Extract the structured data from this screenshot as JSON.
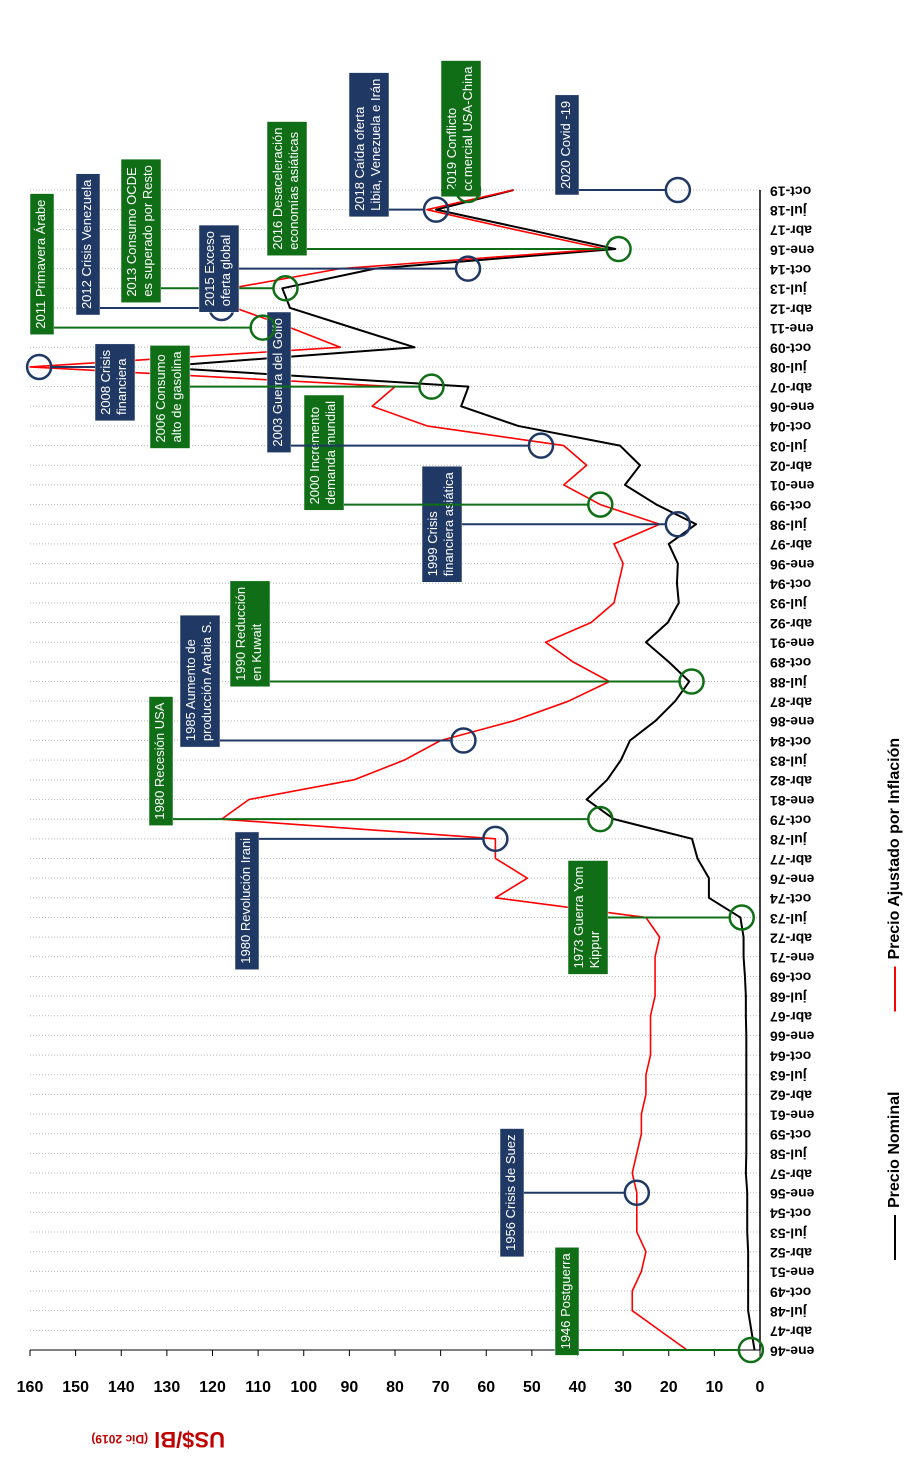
{
  "chart_data": {
    "type": "line",
    "y_label": "US$/Bl",
    "y_label_note": "(Dic 2019)",
    "categories": [
      "ene-46",
      "abr-47",
      "jul-48",
      "oct-49",
      "ene-51",
      "abr-52",
      "jul-53",
      "oct-54",
      "ene-56",
      "abr-57",
      "jul-58",
      "oct-59",
      "ene-61",
      "abr-62",
      "jul-63",
      "oct-64",
      "ene-66",
      "abr-67",
      "jul-68",
      "oct-69",
      "ene-71",
      "abr-72",
      "jul-73",
      "oct-74",
      "ene-76",
      "abr-77",
      "jul-78",
      "oct-79",
      "ene-81",
      "abr-82",
      "jul-83",
      "oct-84",
      "ene-86",
      "abr-87",
      "jul-88",
      "oct-89",
      "ene-91",
      "abr-92",
      "jul-93",
      "oct-94",
      "ene-96",
      "abr-97",
      "jul-98",
      "oct-99",
      "ene-01",
      "abr-02",
      "jul-03",
      "oct-04",
      "ene-06",
      "abr-07",
      "jul-08",
      "oct-09",
      "ene-11",
      "abr-12",
      "jul-13",
      "oct-14",
      "ene-16",
      "abr-17",
      "jul-18",
      "oct-19"
    ],
    "series": [
      {
        "name": "Precio Nominal",
        "color": "#000000",
        "values": [
          1.2,
          1.9,
          2.6,
          2.6,
          2.6,
          2.6,
          2.8,
          2.8,
          2.8,
          3.1,
          3.0,
          3.0,
          3.0,
          3.0,
          3.0,
          3.0,
          3.0,
          3.1,
          3.1,
          3.3,
          3.6,
          3.6,
          4.3,
          11.2,
          11.2,
          13.7,
          14.9,
          32,
          38,
          33.5,
          30.5,
          28.5,
          22.9,
          18.6,
          15.5,
          20,
          25,
          20.2,
          17.8,
          18.2,
          18,
          20,
          14,
          22.7,
          29.6,
          26.3,
          30.7,
          53,
          65.5,
          63.9,
          133,
          75.7,
          89.4,
          103,
          104.7,
          84.4,
          31.7,
          51.1,
          71,
          54
        ]
      },
      {
        "name": "Precio Ajustado por Inflación",
        "color": "#ff0000",
        "values": [
          16,
          22,
          28,
          28,
          26,
          25,
          27,
          27,
          27,
          28,
          27,
          26,
          26,
          25,
          25,
          24,
          24,
          24,
          23,
          23,
          23,
          22,
          25,
          58,
          51,
          58,
          58,
          118,
          112,
          89,
          78,
          70,
          54,
          42,
          33,
          41,
          47,
          37,
          32,
          31,
          30,
          32,
          22,
          35,
          43,
          38,
          43,
          73,
          85,
          80,
          160,
          92,
          103,
          115,
          116,
          92,
          34,
          54,
          73,
          54
        ]
      }
    ],
    "ylim": [
      0,
      160
    ],
    "yticks": [
      0,
      10,
      20,
      30,
      40,
      50,
      60,
      70,
      80,
      90,
      100,
      110,
      120,
      130,
      140,
      150,
      160
    ],
    "xgrid": true,
    "legend": "bottom",
    "annotations": [
      {
        "lines": [
          "1946 Postguerra"
        ],
        "category": "ene-46",
        "value": 2,
        "color": "#0f6e16"
      },
      {
        "lines": [
          "1956 Crisis de Suez"
        ],
        "category": "ene-56",
        "value": 27,
        "color": "#1f3864"
      },
      {
        "lines": [
          "1973 Guerra Yom",
          "Kippur"
        ],
        "category": "jul-73",
        "value": 4,
        "color": "#0f6e16"
      },
      {
        "lines": [
          "1980 Revolución Irani"
        ],
        "category": "jul-78",
        "value": 58,
        "color": "#1f3864"
      },
      {
        "lines": [
          "1980 Recesión USA"
        ],
        "category": "oct-79",
        "value": 35,
        "color": "#0f6e16"
      },
      {
        "lines": [
          "1985 Aumento de",
          "producción Arabia S."
        ],
        "category": "oct-84",
        "value": 65,
        "color": "#1f3864"
      },
      {
        "lines": [
          "1990 Reducción",
          "en Kuwait"
        ],
        "category": "jul-88",
        "value": 15,
        "color": "#0f6e16"
      },
      {
        "lines": [
          "1999 Crisis",
          "financiera asiática"
        ],
        "category": "jul-98",
        "value": 18,
        "color": "#1f3864"
      },
      {
        "lines": [
          "2000 Incremento",
          "demanda mundial"
        ],
        "category": "oct-99",
        "value": 35,
        "color": "#0f6e16"
      },
      {
        "lines": [
          "2003 Guerra del Golfo"
        ],
        "category": "jul-03",
        "value": 48,
        "color": "#1f3864"
      },
      {
        "lines": [
          "2006 Consumo",
          "alto de gasolina"
        ],
        "category": "abr-07",
        "value": 72,
        "color": "#0f6e16"
      },
      {
        "lines": [
          "2008 Crisis",
          "financiera"
        ],
        "category": "jul-08",
        "value": 158,
        "color": "#1f3864"
      },
      {
        "lines": [
          "2011 Primavera Árabe"
        ],
        "category": "ene-11",
        "value": 109,
        "color": "#0f6e16"
      },
      {
        "lines": [
          "2012 Crisis Venezuela"
        ],
        "category": "abr-12",
        "value": 118,
        "color": "#1f3864"
      },
      {
        "lines": [
          "2013 Consumo OCDE",
          "es superado por Resto"
        ],
        "category": "jul-13",
        "value": 104,
        "color": "#0f6e16"
      },
      {
        "lines": [
          "2015 Exceso",
          "oferta global"
        ],
        "category": "oct-14",
        "value": 64,
        "color": "#1f3864"
      },
      {
        "lines": [
          "2016 Desaceleración",
          "economías asiáticas"
        ],
        "category": "ene-16",
        "value": 31,
        "color": "#0f6e16"
      },
      {
        "lines": [
          "2018 Caída oferta",
          "Libia, Venezuela e Irán"
        ],
        "category": "jul-18",
        "value": 71,
        "color": "#1f3864"
      },
      {
        "lines": [
          "2019 Conflicto",
          "comercial USA-China"
        ],
        "category": "oct-19",
        "value": 64,
        "color": "#0f6e16"
      },
      {
        "lines": [
          "2020 Covid -19"
        ],
        "category": "oct-19",
        "value": 18,
        "color": "#1f3864"
      }
    ]
  }
}
